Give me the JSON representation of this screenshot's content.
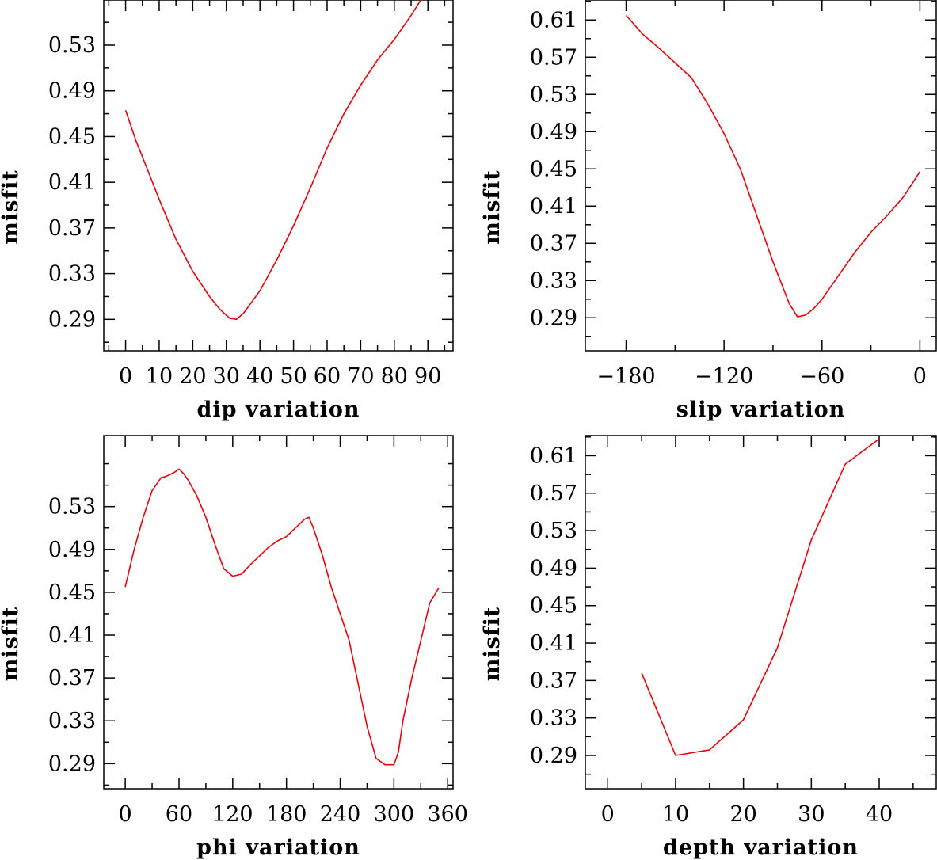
{
  "colors": {
    "line": "#e8000b",
    "axis": "#000000",
    "background": "#ffffff"
  },
  "chart_data": [
    {
      "type": "line",
      "title": "",
      "xlabel": "dip     variation",
      "ylabel": "misfit",
      "xlim": [
        -6.5,
        97.5
      ],
      "ylim": [
        0.2625,
        0.5695
      ],
      "xticks": [
        0,
        10,
        20,
        30,
        40,
        50,
        60,
        70,
        80,
        90
      ],
      "xtick_labels": [
        "0",
        "10",
        "20",
        "30",
        "40",
        "50",
        "60",
        "70",
        "80",
        "90"
      ],
      "yticks": [
        0.29,
        0.33,
        0.37,
        0.41,
        0.45,
        0.49,
        0.53
      ],
      "ytick_labels": [
        "0.29",
        "0.33",
        "0.37",
        "0.41",
        "0.45",
        "0.49",
        "0.53"
      ],
      "grid": false,
      "x": [
        0,
        3,
        6,
        10,
        15,
        20,
        25,
        28,
        31,
        33,
        35,
        40,
        45,
        50,
        55,
        60,
        65,
        70,
        75,
        80,
        85,
        88
      ],
      "y": [
        0.473,
        0.447,
        0.425,
        0.395,
        0.36,
        0.332,
        0.31,
        0.299,
        0.291,
        0.29,
        0.295,
        0.315,
        0.342,
        0.372,
        0.405,
        0.44,
        0.47,
        0.495,
        0.517,
        0.535,
        0.556,
        0.57
      ]
    },
    {
      "type": "line",
      "title": "",
      "xlabel": "slip   variation",
      "ylabel": "misfit",
      "xlim": [
        -205,
        10
      ],
      "ylim": [
        0.2545,
        0.6315
      ],
      "xticks": [
        -180,
        -120,
        -60,
        0
      ],
      "xtick_labels": [
        "−180",
        "−120",
        "−60",
        "0"
      ],
      "yticks": [
        0.29,
        0.33,
        0.37,
        0.41,
        0.45,
        0.49,
        0.53,
        0.57,
        0.61
      ],
      "ytick_labels": [
        "0.29",
        "0.33",
        "0.37",
        "0.41",
        "0.45",
        "0.49",
        "0.53",
        "0.57",
        "0.61"
      ],
      "grid": false,
      "x": [
        -180,
        -170,
        -160,
        -140,
        -130,
        -120,
        -110,
        -100,
        -90,
        -80,
        -75,
        -70,
        -65,
        -60,
        -50,
        -40,
        -30,
        -20,
        -10,
        0
      ],
      "y": [
        0.615,
        0.595,
        0.58,
        0.548,
        0.52,
        0.488,
        0.45,
        0.4,
        0.35,
        0.305,
        0.291,
        0.293,
        0.3,
        0.31,
        0.335,
        0.36,
        0.382,
        0.4,
        0.42,
        0.447
      ]
    },
    {
      "type": "line",
      "title": "",
      "xlabel": "phi     variation",
      "ylabel": "misfit",
      "xlim": [
        -24,
        366
      ],
      "ylim": [
        0.2666,
        0.5963
      ],
      "xticks": [
        0,
        60,
        120,
        180,
        240,
        300,
        360
      ],
      "xtick_labels": [
        "0",
        "60",
        "120",
        "180",
        "240",
        "300",
        "360"
      ],
      "yticks": [
        0.29,
        0.33,
        0.37,
        0.41,
        0.45,
        0.49,
        0.53
      ],
      "ytick_labels": [
        "0.29",
        "0.33",
        "0.37",
        "0.41",
        "0.45",
        "0.49",
        "0.53"
      ],
      "grid": false,
      "x": [
        0,
        10,
        20,
        30,
        40,
        45,
        50,
        55,
        60,
        65,
        70,
        80,
        90,
        100,
        110,
        120,
        130,
        140,
        150,
        160,
        170,
        180,
        190,
        200,
        205,
        210,
        220,
        230,
        240,
        250,
        260,
        270,
        280,
        290,
        300,
        305,
        310,
        320,
        330,
        340,
        350
      ],
      "y": [
        0.455,
        0.49,
        0.52,
        0.545,
        0.557,
        0.558,
        0.56,
        0.562,
        0.565,
        0.561,
        0.555,
        0.54,
        0.52,
        0.495,
        0.472,
        0.465,
        0.467,
        0.476,
        0.484,
        0.492,
        0.498,
        0.502,
        0.51,
        0.518,
        0.52,
        0.51,
        0.485,
        0.455,
        0.43,
        0.405,
        0.365,
        0.325,
        0.295,
        0.289,
        0.289,
        0.301,
        0.33,
        0.37,
        0.405,
        0.44,
        0.454
      ]
    },
    {
      "type": "line",
      "title": "",
      "xlabel": "depth   variation",
      "ylabel": "misfit",
      "xlim": [
        -3.3,
        48.4
      ],
      "ylim": [
        0.2545,
        0.6315
      ],
      "xticks": [
        0,
        10,
        20,
        30,
        40
      ],
      "xtick_labels": [
        "0",
        "10",
        "20",
        "30",
        "40"
      ],
      "yticks": [
        0.29,
        0.33,
        0.37,
        0.41,
        0.45,
        0.49,
        0.53,
        0.57,
        0.61
      ],
      "ytick_labels": [
        "0.29",
        "0.33",
        "0.37",
        "0.41",
        "0.45",
        "0.49",
        "0.53",
        "0.57",
        "0.61"
      ],
      "grid": false,
      "x": [
        5,
        10,
        15,
        20,
        25,
        30,
        35,
        40
      ],
      "y": [
        0.378,
        0.29,
        0.296,
        0.328,
        0.405,
        0.52,
        0.601,
        0.628
      ]
    }
  ]
}
